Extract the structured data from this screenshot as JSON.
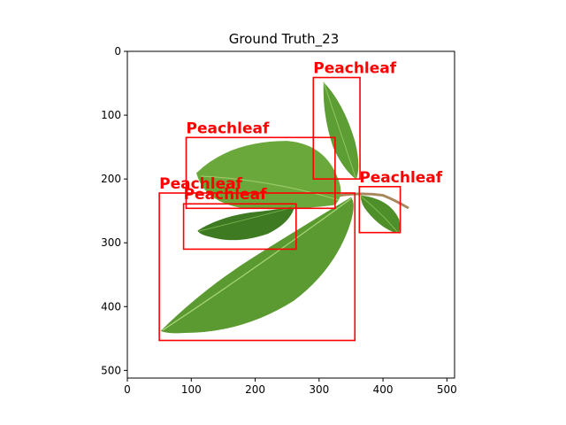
{
  "title": "Ground Truth_23",
  "colors": {
    "box": "#ff0000",
    "leaf_dark": "#3d7a22",
    "leaf_mid": "#5c9e33",
    "leaf_light": "#8cc25a",
    "stem": "#a7875a"
  },
  "chart_data": {
    "type": "image_with_bounding_boxes",
    "title": "Ground Truth_23",
    "xlim": [
      0,
      512
    ],
    "ylim": [
      512,
      0
    ],
    "x_ticks": [
      0,
      100,
      200,
      300,
      400,
      500
    ],
    "y_ticks": [
      0,
      100,
      200,
      300,
      400,
      500
    ],
    "grid": false,
    "boxes": [
      {
        "label": "Peachleaf",
        "x1": 291,
        "y1": 41,
        "x2": 364,
        "y2": 200
      },
      {
        "label": "Peachleaf",
        "x1": 92,
        "y1": 135,
        "x2": 325,
        "y2": 246
      },
      {
        "label": "Peachleaf",
        "x1": 363,
        "y1": 212,
        "x2": 427,
        "y2": 284
      },
      {
        "label": "Peachleaf",
        "x1": 50,
        "y1": 222,
        "x2": 356,
        "y2": 453
      },
      {
        "label": "Peachleaf",
        "x1": 88,
        "y1": 239,
        "x2": 264,
        "y2": 310
      }
    ]
  }
}
